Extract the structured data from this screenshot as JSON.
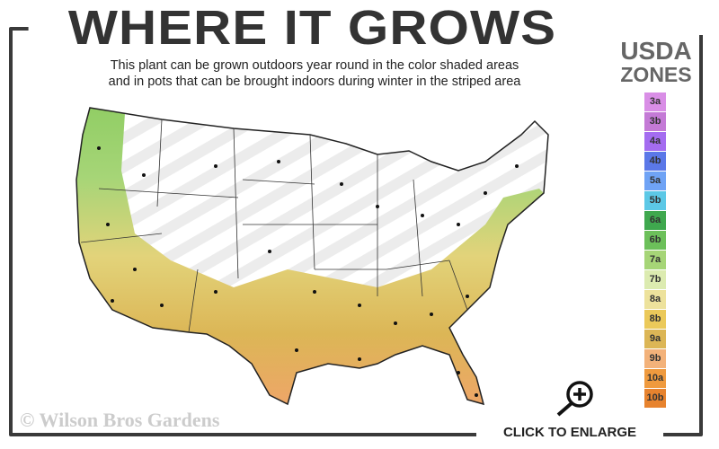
{
  "title": "WHERE IT GROWS",
  "subtitle_line1": "This plant can be grown outdoors year round in the color shaded areas",
  "subtitle_line2": "and in pots that can be brought indoors during winter in the striped area",
  "legend": {
    "heading1": "USDA",
    "heading2": "ZONES",
    "zones": [
      {
        "label": "3a",
        "color": "#d98ee6"
      },
      {
        "label": "3b",
        "color": "#c47ad6"
      },
      {
        "label": "4a",
        "color": "#a46cf0"
      },
      {
        "label": "4b",
        "color": "#5b78e8"
      },
      {
        "label": "5a",
        "color": "#6fa3f5"
      },
      {
        "label": "5b",
        "color": "#5cc8e6"
      },
      {
        "label": "6a",
        "color": "#3fa84e"
      },
      {
        "label": "6b",
        "color": "#6cc05a"
      },
      {
        "label": "7a",
        "color": "#a6d577"
      },
      {
        "label": "7b",
        "color": "#dcebb0"
      },
      {
        "label": "8a",
        "color": "#ede29c"
      },
      {
        "label": "8b",
        "color": "#ebc95a"
      },
      {
        "label": "9a",
        "color": "#dcb656"
      },
      {
        "label": "9b",
        "color": "#f3b27a"
      },
      {
        "label": "10a",
        "color": "#ef9a3e"
      },
      {
        "label": "10b",
        "color": "#e7832e"
      }
    ]
  },
  "copyright": "© Wilson Bros Gardens",
  "enlarge_label": "CLICK TO ENLARGE",
  "icons": {
    "magnifier": "zoom-in-icon"
  }
}
